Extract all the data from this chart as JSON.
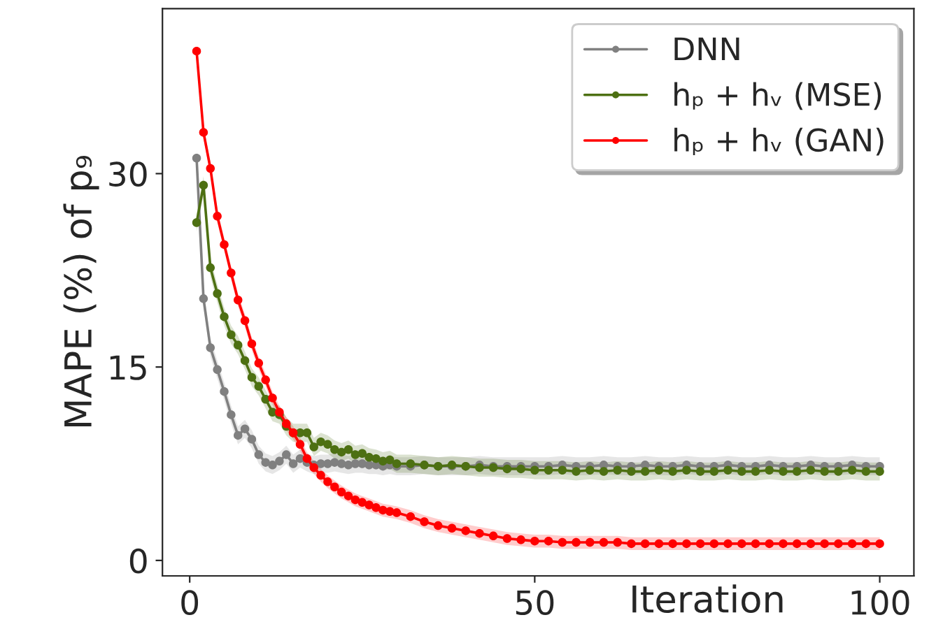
{
  "chart_data": {
    "type": "line",
    "xlabel": "Iteration",
    "ylabel": "MAPE (%) of p₉",
    "xlim": [
      -3.95,
      104.95
    ],
    "xticks": [
      0,
      50,
      100
    ],
    "ylim": [
      -1.2,
      42.8
    ],
    "yticks": [
      0,
      15,
      30
    ],
    "grid": false,
    "legend": "top right",
    "marker": "circle",
    "line_style": "solid",
    "x": [
      1,
      2,
      3,
      4,
      5,
      6,
      7,
      8,
      9,
      10,
      11,
      12,
      13,
      14,
      15,
      16,
      17,
      18,
      19,
      20,
      21,
      22,
      23,
      24,
      25,
      26,
      27,
      28,
      29,
      30,
      32,
      34,
      36,
      38,
      40,
      42,
      44,
      46,
      48,
      50,
      52,
      54,
      56,
      58,
      60,
      62,
      64,
      66,
      68,
      70,
      72,
      74,
      76,
      78,
      80,
      82,
      84,
      86,
      88,
      90,
      92,
      94,
      96,
      98,
      100
    ],
    "series": [
      {
        "name": "DNN",
        "color": "#808080",
        "values": [
          31.2,
          20.3,
          16.5,
          14.8,
          13.1,
          11.3,
          9.7,
          10.2,
          9.4,
          8.2,
          7.6,
          7.4,
          7.7,
          8.2,
          7.5,
          7.9,
          7.6,
          7.4,
          7.5,
          7.5,
          7.6,
          7.5,
          7.4,
          7.5,
          7.5,
          7.4,
          7.4,
          7.3,
          7.4,
          7.3,
          7.3,
          7.4,
          7.3,
          7.3,
          7.3,
          7.4,
          7.3,
          7.3,
          7.3,
          7.3,
          7.3,
          7.4,
          7.3,
          7.3,
          7.4,
          7.3,
          7.3,
          7.4,
          7.3,
          7.3,
          7.4,
          7.3,
          7.3,
          7.4,
          7.3,
          7.3,
          7.4,
          7.3,
          7.3,
          7.4,
          7.3,
          7.3,
          7.4,
          7.3,
          7.3
        ],
        "lower": [
          30.5,
          19.6,
          15.8,
          14.1,
          12.4,
          10.6,
          9.0,
          9.5,
          8.7,
          7.5,
          6.9,
          6.7,
          7.0,
          7.5,
          6.8,
          7.2,
          6.9,
          6.7,
          6.8,
          6.8,
          6.9,
          6.8,
          6.7,
          6.8,
          6.8,
          6.7,
          6.7,
          6.6,
          6.7,
          6.6,
          6.6,
          6.7,
          6.6,
          6.6,
          6.6,
          6.7,
          6.6,
          6.6,
          6.6,
          6.6,
          6.6,
          6.7,
          6.6,
          6.6,
          6.7,
          6.6,
          6.6,
          6.7,
          6.6,
          6.6,
          6.7,
          6.6,
          6.6,
          6.7,
          6.6,
          6.6,
          6.7,
          6.6,
          6.6,
          6.7,
          6.6,
          6.6,
          6.7,
          6.6,
          6.6
        ],
        "upper": [
          31.9,
          21.0,
          17.2,
          15.5,
          13.8,
          12.0,
          10.4,
          10.9,
          10.1,
          8.9,
          8.3,
          8.1,
          8.4,
          8.9,
          8.2,
          8.6,
          8.3,
          8.1,
          8.2,
          8.2,
          8.3,
          8.2,
          8.1,
          8.2,
          8.2,
          8.1,
          8.1,
          8.0,
          8.1,
          8.0,
          8.0,
          8.1,
          8.0,
          8.0,
          8.0,
          8.1,
          8.0,
          8.0,
          8.0,
          8.0,
          8.0,
          8.1,
          8.0,
          8.0,
          8.1,
          8.0,
          8.0,
          8.1,
          8.0,
          8.0,
          8.1,
          8.0,
          8.0,
          8.1,
          8.0,
          8.0,
          8.1,
          8.0,
          8.0,
          8.1,
          8.0,
          8.0,
          8.1,
          8.0,
          8.0
        ]
      },
      {
        "name": "hₚ + hᵥ (MSE)",
        "color": "#4d7012",
        "values": [
          26.2,
          29.1,
          22.7,
          20.7,
          18.9,
          17.5,
          16.7,
          15.5,
          14.2,
          13.5,
          12.5,
          11.5,
          11.3,
          10.4,
          9.9,
          9.9,
          9.9,
          8.8,
          9.2,
          9.0,
          8.6,
          8.4,
          8.6,
          8.2,
          8.3,
          8.0,
          7.9,
          7.7,
          7.8,
          7.5,
          7.5,
          7.4,
          7.3,
          7.4,
          7.3,
          7.2,
          7.2,
          7.1,
          7.1,
          7.0,
          7.0,
          7.0,
          6.9,
          7.0,
          6.9,
          7.0,
          6.9,
          6.9,
          7.0,
          6.9,
          7.0,
          6.9,
          6.9,
          7.0,
          6.9,
          6.9,
          7.0,
          6.9,
          6.9,
          7.0,
          6.9,
          6.9,
          7.0,
          6.9,
          6.9
        ],
        "lower": [
          25.5,
          28.4,
          22.0,
          20.0,
          18.2,
          16.8,
          16.0,
          14.8,
          13.5,
          12.8,
          11.8,
          10.8,
          10.6,
          9.7,
          9.2,
          9.2,
          9.2,
          8.1,
          8.5,
          8.3,
          7.9,
          7.7,
          7.9,
          7.5,
          7.6,
          7.3,
          7.2,
          7.0,
          7.1,
          6.8,
          6.8,
          6.7,
          6.6,
          6.7,
          6.6,
          6.5,
          6.5,
          6.4,
          6.4,
          6.3,
          6.3,
          6.3,
          6.2,
          6.3,
          6.2,
          6.3,
          6.2,
          6.2,
          6.3,
          6.2,
          6.3,
          6.2,
          6.2,
          6.3,
          6.2,
          6.2,
          6.3,
          6.2,
          6.2,
          6.3,
          6.2,
          6.2,
          6.3,
          6.2,
          6.2
        ],
        "upper": [
          26.9,
          29.8,
          23.4,
          21.4,
          19.6,
          18.2,
          17.4,
          16.2,
          14.9,
          14.2,
          13.2,
          12.2,
          12.0,
          11.1,
          10.6,
          10.6,
          10.6,
          9.5,
          9.9,
          9.7,
          9.3,
          9.1,
          9.3,
          8.9,
          9.0,
          8.7,
          8.6,
          8.4,
          8.5,
          8.2,
          8.2,
          8.1,
          8.0,
          8.1,
          8.0,
          7.9,
          7.9,
          7.8,
          7.8,
          7.7,
          7.7,
          7.7,
          7.6,
          7.7,
          7.6,
          7.7,
          7.6,
          7.6,
          7.7,
          7.6,
          7.7,
          7.6,
          7.6,
          7.7,
          7.6,
          7.6,
          7.7,
          7.6,
          7.6,
          7.7,
          7.6,
          7.6,
          7.7,
          7.6,
          7.6
        ]
      },
      {
        "name": "hₚ + hᵥ (GAN)",
        "color": "#ff0000",
        "values": [
          39.5,
          33.2,
          30.4,
          26.7,
          24.5,
          22.3,
          20.2,
          18.6,
          16.8,
          15.3,
          14.0,
          12.6,
          11.5,
          10.6,
          9.9,
          9.0,
          7.9,
          7.2,
          6.6,
          6.1,
          5.7,
          5.3,
          5.0,
          4.7,
          4.5,
          4.3,
          4.1,
          3.9,
          3.8,
          3.7,
          3.4,
          3.0,
          2.7,
          2.5,
          2.3,
          2.1,
          1.9,
          1.7,
          1.6,
          1.5,
          1.5,
          1.4,
          1.4,
          1.4,
          1.4,
          1.4,
          1.3,
          1.3,
          1.3,
          1.3,
          1.3,
          1.3,
          1.3,
          1.3,
          1.3,
          1.3,
          1.3,
          1.3,
          1.3,
          1.3,
          1.3,
          1.3,
          1.3,
          1.3,
          1.3
        ],
        "lower": [
          39.0,
          32.7,
          29.9,
          26.2,
          24.0,
          21.8,
          19.7,
          18.1,
          16.3,
          14.8,
          13.5,
          12.1,
          11.0,
          10.1,
          9.4,
          8.5,
          7.4,
          6.7,
          6.1,
          5.6,
          5.2,
          4.8,
          4.5,
          4.2,
          4.0,
          3.8,
          3.6,
          3.4,
          3.3,
          3.2,
          2.9,
          2.5,
          2.2,
          2.0,
          1.8,
          1.6,
          1.4,
          1.2,
          1.1,
          1.0,
          1.0,
          0.9,
          0.9,
          0.9,
          0.9,
          0.9,
          0.8,
          0.8,
          0.8,
          0.8,
          0.8,
          0.8,
          0.8,
          0.8,
          0.8,
          0.8,
          0.8,
          0.8,
          0.8,
          0.8,
          0.8,
          0.8,
          0.8,
          0.8,
          0.8
        ],
        "upper": [
          40.0,
          33.7,
          30.9,
          27.2,
          25.0,
          22.8,
          20.7,
          19.1,
          17.3,
          15.8,
          14.5,
          13.1,
          12.0,
          11.1,
          10.4,
          9.5,
          8.4,
          7.7,
          7.1,
          6.6,
          6.2,
          5.8,
          5.5,
          5.2,
          5.0,
          4.8,
          4.6,
          4.4,
          4.3,
          4.2,
          3.9,
          3.5,
          3.2,
          3.0,
          2.8,
          2.6,
          2.4,
          2.2,
          2.1,
          2.0,
          2.0,
          1.9,
          1.9,
          1.9,
          1.9,
          1.9,
          1.8,
          1.8,
          1.8,
          1.8,
          1.8,
          1.8,
          1.8,
          1.8,
          1.8,
          1.8,
          1.8,
          1.8,
          1.8,
          1.8,
          1.8,
          1.8,
          1.8,
          1.8,
          1.8
        ]
      }
    ]
  }
}
